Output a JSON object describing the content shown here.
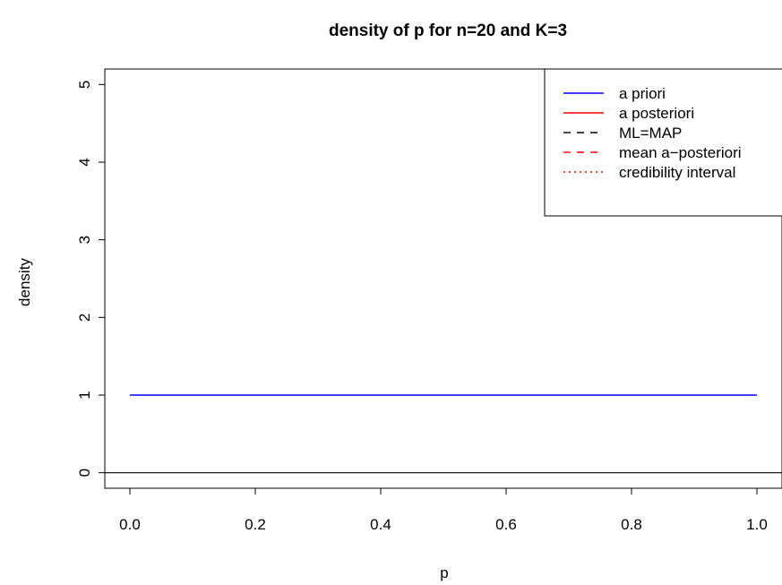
{
  "chart_data": {
    "type": "line",
    "title": "density of p for n=20 and K=3",
    "xlabel": "p",
    "ylabel": "density",
    "xlim": [
      -0.04,
      1.04
    ],
    "ylim": [
      -0.2,
      5.2
    ],
    "xticks": [
      0.0,
      0.2,
      0.4,
      0.6,
      0.8,
      1.0
    ],
    "xtick_labels": [
      "0.0",
      "0.2",
      "0.4",
      "0.6",
      "0.8",
      "1.0"
    ],
    "yticks": [
      0,
      1,
      2,
      3,
      4,
      5
    ],
    "ytick_labels": [
      "0",
      "1",
      "2",
      "3",
      "4",
      "5"
    ],
    "hlines": [
      {
        "y": 0,
        "color": "#000000"
      }
    ],
    "series": [
      {
        "name": "a priori",
        "color": "#0000ff",
        "dash": "solid",
        "x": [
          0.0,
          1.0
        ],
        "y": [
          1.0,
          1.0
        ]
      }
    ],
    "legend": {
      "position": "top-right",
      "entries": [
        {
          "label": "a priori",
          "color": "#0000ff",
          "dash": "solid"
        },
        {
          "label": "a posteriori",
          "color": "#ff0000",
          "dash": "solid"
        },
        {
          "label": "ML=MAP",
          "color": "#000000",
          "dash": "dashed"
        },
        {
          "label": "mean a−posteriori",
          "color": "#ff0000",
          "dash": "dashed"
        },
        {
          "label": "credibility interval",
          "color": "#ff0000",
          "dash": "dotted"
        }
      ]
    },
    "grid": false
  }
}
